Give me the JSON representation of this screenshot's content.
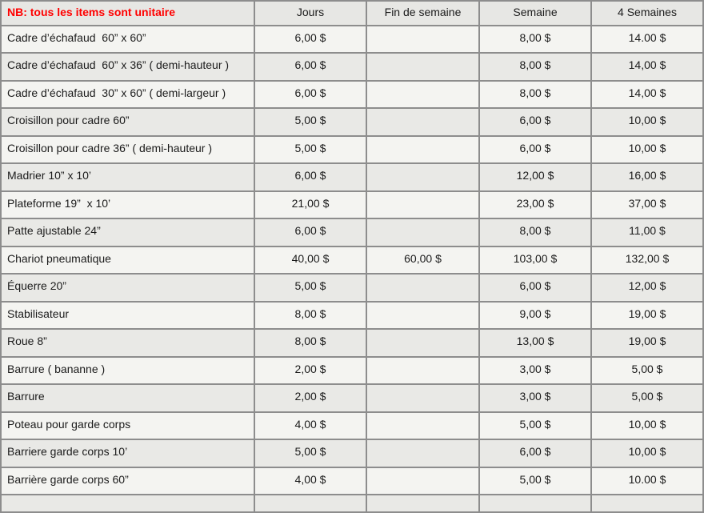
{
  "header": {
    "note": "NB: tous les items sont unitaire",
    "columns": [
      "Jours",
      "Fin de semaine",
      "Semaine",
      "4 Semaines"
    ]
  },
  "rows": [
    [
      "Cadre d’échafaud  60” x 60”",
      "6,00 $",
      "",
      "8,00 $",
      "14.00 $"
    ],
    [
      "Cadre d’échafaud  60” x 36” ( demi-hauteur )",
      "6,00 $",
      "",
      "8,00 $",
      "14,00 $"
    ],
    [
      "Cadre d’échafaud  30” x 60” ( demi-largeur )",
      "6,00 $",
      "",
      "8,00 $",
      "14,00 $"
    ],
    [
      "Croisillon pour cadre 60”",
      "5,00 $",
      "",
      "6,00 $",
      "10,00 $"
    ],
    [
      "Croisillon pour cadre 36” ( demi-hauteur )",
      "5,00 $",
      "",
      "6,00 $",
      "10,00 $"
    ],
    [
      "Madrier 10” x 10’",
      "6,00 $",
      "",
      "12,00 $",
      "16,00 $"
    ],
    [
      "Plateforme 19”  x 10’",
      "21,00 $",
      "",
      "23,00 $",
      "37,00 $"
    ],
    [
      "Patte ajustable 24”",
      "6,00 $",
      "",
      "8,00 $",
      "11,00 $"
    ],
    [
      "Chariot pneumatique",
      "40,00 $",
      "60,00 $",
      "103,00 $",
      "132,00 $"
    ],
    [
      "Équerre 20”",
      "5,00 $",
      "",
      "6,00 $",
      "12,00 $"
    ],
    [
      "Stabilisateur",
      "8,00 $",
      "",
      "9,00 $",
      "19,00 $"
    ],
    [
      "Roue 8”",
      "8,00 $",
      "",
      "13,00 $",
      "19,00 $"
    ],
    [
      "Barrure ( bananne )",
      "2,00 $",
      "",
      "3,00 $",
      "5,00 $"
    ],
    [
      "Barrure",
      "2,00 $",
      "",
      "3,00 $",
      "5,00 $"
    ],
    [
      "Poteau pour garde corps",
      "4,00 $",
      "",
      "5,00 $",
      "10,00 $"
    ],
    [
      "Barriere garde corps 10’",
      "5,00 $",
      "",
      "6,00 $",
      "10,00 $"
    ],
    [
      "Barrière garde corps 60”",
      "4,00 $",
      "",
      "5,00 $",
      "10.00 $"
    ],
    [
      "",
      "",
      "",
      "",
      ""
    ]
  ],
  "colors": {
    "note_text": "#ff0000",
    "row_light": "#f4f4f1",
    "row_gray": "#e9e9e6",
    "header_bg": "#e7e7e4",
    "border_inner": "#8d8d8d",
    "border_outer": "#3a3a3a"
  }
}
